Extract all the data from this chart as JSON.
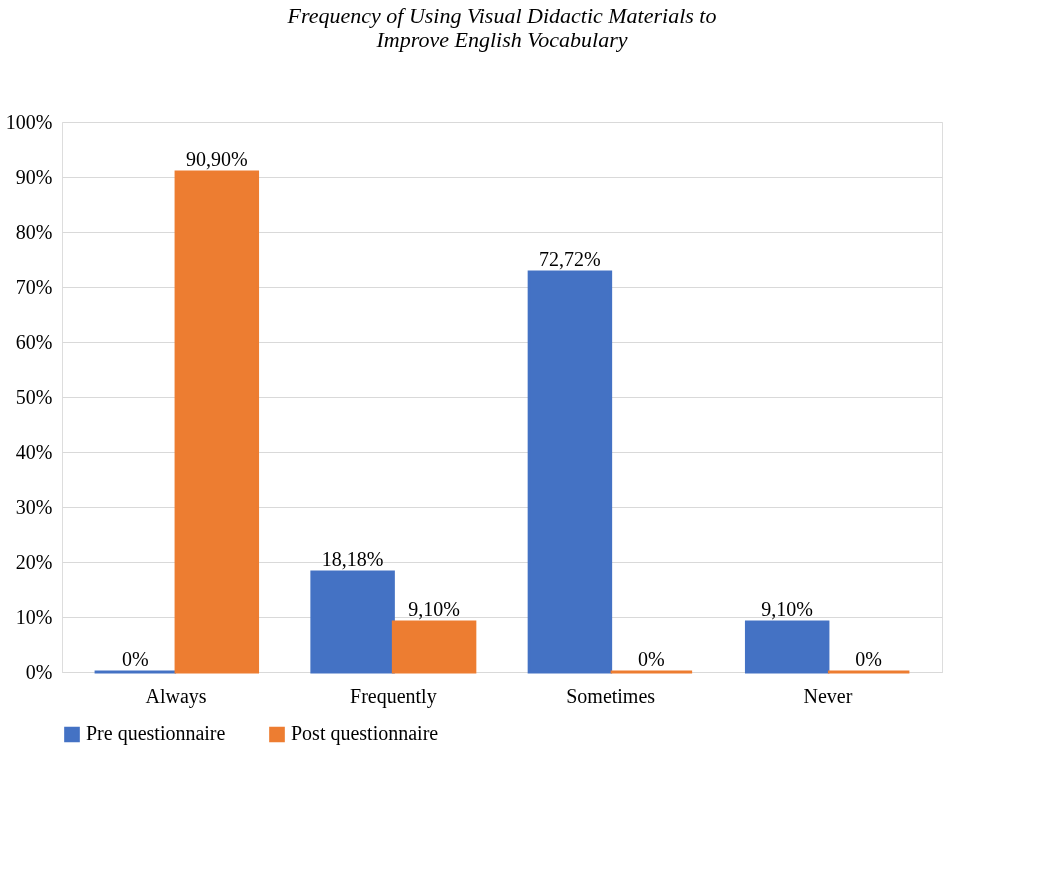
{
  "chart_data": {
    "type": "bar",
    "title": "Frequency of Using Visual Didactic Materials to Improve English Vocabulary",
    "categories": [
      "Always",
      "Frequently",
      "Sometimes",
      "Never"
    ],
    "series": [
      {
        "name": "Pre questionnaire",
        "color": "#4472c4",
        "values": [
          0,
          18.18,
          72.72,
          9.1
        ],
        "value_labels": [
          "0%",
          "18,18%",
          "72,72%",
          "9,10%"
        ]
      },
      {
        "name": "Post questionnaire",
        "color": "#ed7d31",
        "values": [
          90.9,
          9.1,
          0,
          0
        ],
        "value_labels": [
          "90,90%",
          "9,10%",
          "0%",
          "0%"
        ]
      }
    ],
    "ylim": [
      0,
      100
    ],
    "yticks": [
      {
        "value": 0,
        "label": "0%"
      },
      {
        "value": 10,
        "label": "10%"
      },
      {
        "value": 20,
        "label": "20%"
      },
      {
        "value": 30,
        "label": "30%"
      },
      {
        "value": 40,
        "label": "40%"
      },
      {
        "value": 50,
        "label": "50%"
      },
      {
        "value": 60,
        "label": "60%"
      },
      {
        "value": 70,
        "label": "70%"
      },
      {
        "value": 80,
        "label": "80%"
      },
      {
        "value": 90,
        "label": "90%"
      },
      {
        "value": 100,
        "label": "100%"
      }
    ],
    "grid": "y",
    "legend": "bottom"
  }
}
